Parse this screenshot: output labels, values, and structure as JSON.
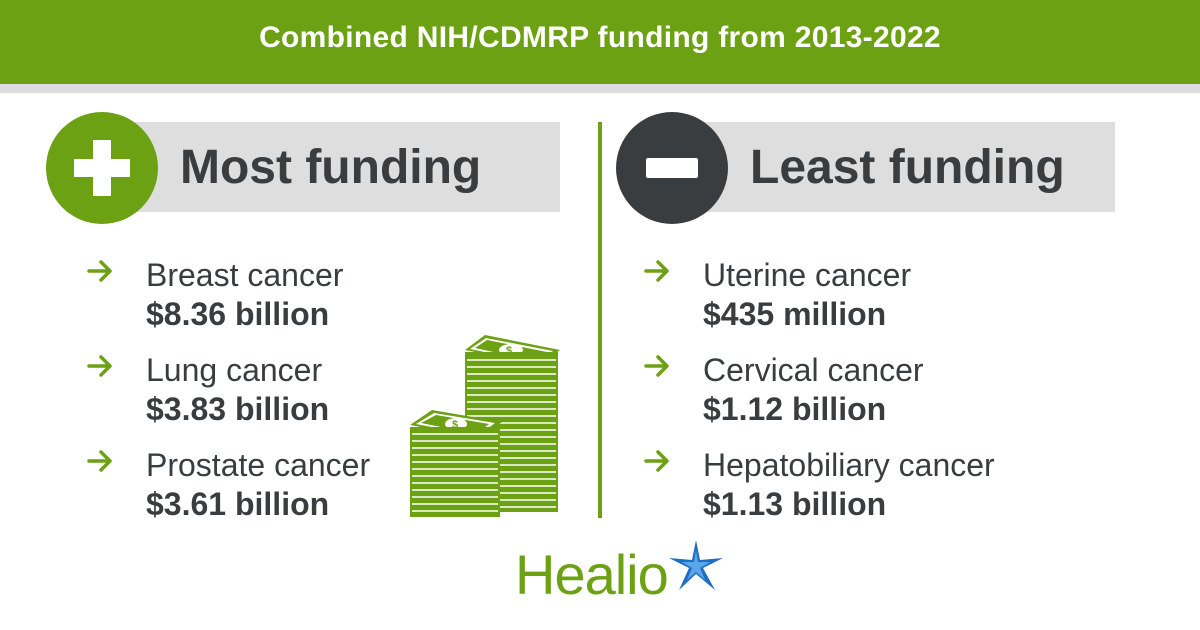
{
  "banner": {
    "title": "Combined NIH/CDMRP funding from 2013-2022"
  },
  "colors": {
    "green": "#6ca114",
    "dark": "#3a3d40",
    "gray": "#dedede",
    "star_blue": "#1e6fc2"
  },
  "most": {
    "heading": "Most funding",
    "icon": "plus-icon",
    "items": [
      {
        "name": "Breast cancer",
        "amount": "$8.36 billion"
      },
      {
        "name": "Lung cancer",
        "amount": "$3.83 billion"
      },
      {
        "name": "Prostate cancer",
        "amount": "$3.61 billion"
      }
    ]
  },
  "least": {
    "heading": "Least funding",
    "icon": "minus-icon",
    "items": [
      {
        "name": "Uterine cancer",
        "amount": "$435 million"
      },
      {
        "name": "Cervical cancer",
        "amount": "$1.12 billion"
      },
      {
        "name": "Hepatobiliary cancer",
        "amount": "$1.13 billion"
      }
    ]
  },
  "logo": {
    "text": "Healio"
  }
}
